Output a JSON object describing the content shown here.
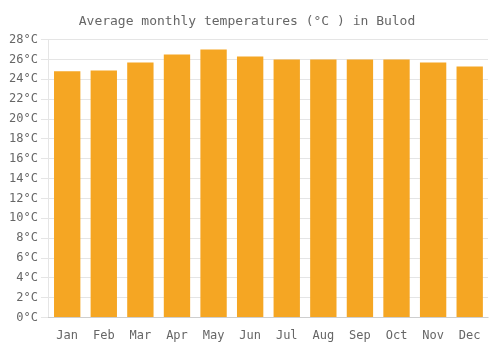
{
  "chart_data": {
    "type": "bar",
    "title": "Average monthly temperatures (°C ) in Bulod",
    "categories": [
      "Jan",
      "Feb",
      "Mar",
      "Apr",
      "May",
      "Jun",
      "Jul",
      "Aug",
      "Sep",
      "Oct",
      "Nov",
      "Dec"
    ],
    "values": [
      24.8,
      24.9,
      25.7,
      26.5,
      27.0,
      26.3,
      26.0,
      26.0,
      26.0,
      26.0,
      25.7,
      25.3
    ],
    "color": "#F5A623",
    "ylim": [
      0,
      28
    ],
    "yticks": [
      {
        "value": 0,
        "label": "0°C"
      },
      {
        "value": 2,
        "label": "2°C"
      },
      {
        "value": 4,
        "label": "4°C"
      },
      {
        "value": 6,
        "label": "6°C"
      },
      {
        "value": 8,
        "label": "8°C"
      },
      {
        "value": 10,
        "label": "10°C"
      },
      {
        "value": 12,
        "label": "12°C"
      },
      {
        "value": 14,
        "label": "14°C"
      },
      {
        "value": 16,
        "label": "16°C"
      },
      {
        "value": 18,
        "label": "18°C"
      },
      {
        "value": 20,
        "label": "20°C"
      },
      {
        "value": 22,
        "label": "22°C"
      },
      {
        "value": 24,
        "label": "24°C"
      },
      {
        "value": 26,
        "label": "26°C"
      },
      {
        "value": 28,
        "label": "28°C"
      }
    ],
    "grid": true
  }
}
